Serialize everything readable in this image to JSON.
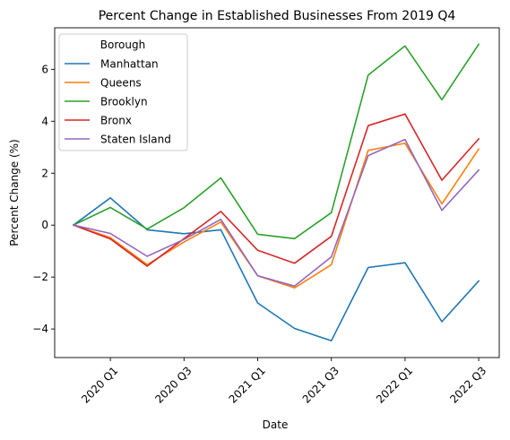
{
  "chart_data": {
    "type": "line",
    "title": "Percent Change in Established Businesses From 2019 Q4",
    "xlabel": "Date",
    "ylabel": "Percent Change (%)",
    "x": [
      "2019 Q4",
      "2020 Q1",
      "2020 Q2",
      "2020 Q3",
      "2020 Q4",
      "2021 Q1",
      "2021 Q2",
      "2021 Q3",
      "2021 Q4",
      "2022 Q1",
      "2022 Q2",
      "2022 Q3"
    ],
    "x_tick_labels": [
      "2020 Q1",
      "2020 Q3",
      "2021 Q1",
      "2021 Q3",
      "2022 Q1",
      "2022 Q3"
    ],
    "y_ticks": [
      -4,
      -2,
      0,
      2,
      4,
      6
    ],
    "ylim": [
      -5.1,
      7.6
    ],
    "grid": false,
    "legend": {
      "title": "Borough",
      "placement": "top-left"
    },
    "series": [
      {
        "name": "Manhattan",
        "color": "#1f77b4",
        "values": [
          0,
          1.05,
          -0.18,
          -0.33,
          -0.18,
          -3.0,
          -3.98,
          -4.45,
          -1.63,
          -1.45,
          -3.72,
          -2.15
        ]
      },
      {
        "name": "Queens",
        "color": "#ff7f0e",
        "values": [
          0,
          -0.48,
          -1.52,
          -0.65,
          0.12,
          -1.95,
          -2.42,
          -1.52,
          2.88,
          3.15,
          0.82,
          2.93
        ]
      },
      {
        "name": "Brooklyn",
        "color": "#2ca02c",
        "values": [
          0,
          0.68,
          -0.15,
          0.67,
          1.82,
          -0.35,
          -0.52,
          0.48,
          5.78,
          6.9,
          4.83,
          6.97
        ]
      },
      {
        "name": "Bronx",
        "color": "#d62728",
        "values": [
          0,
          -0.53,
          -1.58,
          -0.52,
          0.53,
          -0.97,
          -1.47,
          -0.43,
          3.83,
          4.28,
          1.73,
          3.32
        ]
      },
      {
        "name": "Staten Island",
        "color": "#9467bd",
        "values": [
          0,
          -0.32,
          -1.2,
          -0.55,
          0.22,
          -1.95,
          -2.35,
          -1.22,
          2.68,
          3.3,
          0.57,
          2.12
        ]
      }
    ]
  }
}
